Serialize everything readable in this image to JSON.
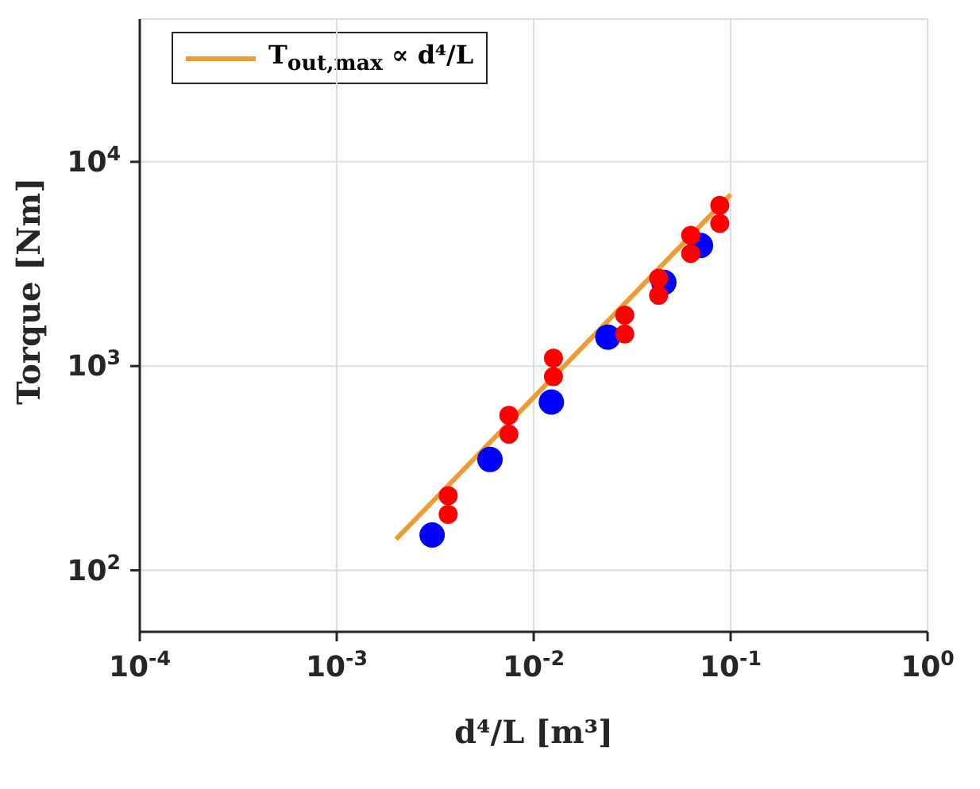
{
  "chart_data": {
    "type": "scatter",
    "xlabel": "d⁴/L [m³]",
    "ylabel": "Torque [Nm]",
    "log": "xy",
    "grid": true,
    "legend": "top left",
    "marker": "circle",
    "xlim": [
      0.0001,
      1
    ],
    "xticks": [
      {
        "value": 0.0001,
        "label": "10$^{-4}$"
      },
      {
        "value": 0.001,
        "label": "10$^{-3}$"
      },
      {
        "value": 0.01,
        "label": "10$^{-2}$"
      },
      {
        "value": 0.1,
        "label": "10$^{-1}$"
      },
      {
        "value": 1,
        "label": "10$^{0}$"
      }
    ],
    "ylim": [
      50,
      50000
    ],
    "yticks": [
      {
        "value": 100,
        "label": "10$^{2}$"
      },
      {
        "value": 1000,
        "label": "10$^{3}$"
      },
      {
        "value": 10000,
        "label": "10$^{4}$"
      }
    ],
    "series": [
      {
        "color": "#0000ff",
        "x": [
          0.00305,
          0.006,
          0.0123,
          0.0238,
          0.0458,
          0.0703
        ],
        "values": [
          149,
          349,
          667,
          1387,
          2567,
          3896
        ]
      },
      {
        "color": "#ff0000",
        "x": [
          0.00368,
          0.00368,
          0.00748,
          0.00748,
          0.0126,
          0.0126,
          0.029,
          0.029,
          0.0431,
          0.0431,
          0.0627,
          0.0627,
          0.0881,
          0.0881
        ],
        "values": [
          232,
          188,
          574,
          464,
          1094,
          887,
          1776,
          1437,
          2694,
          2220,
          4368,
          3557,
          6125,
          4990
        ]
      },
      {
        "type": "line",
        "name": "T$_{out,max}$ ∝ d⁴/L",
        "color": "#ed9b33",
        "marker": "none",
        "x": [
          0.002,
          0.1
        ],
        "values": [
          142,
          6920
        ]
      }
    ]
  }
}
